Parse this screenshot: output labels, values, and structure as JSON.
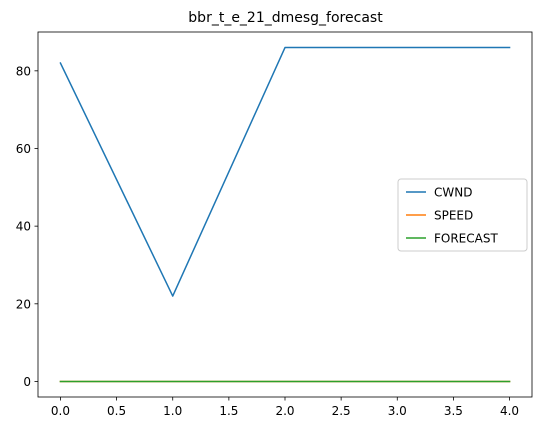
{
  "chart_data": {
    "type": "line",
    "title": "bbr_t_e_21_dmesg_forecast",
    "xlabel": "",
    "ylabel": "",
    "xlim": [
      -0.2,
      4.2
    ],
    "ylim": [
      -4.0,
      90.0
    ],
    "xticks": [
      0.0,
      0.5,
      1.0,
      1.5,
      2.0,
      2.5,
      3.0,
      3.5,
      4.0
    ],
    "xtick_labels": [
      "0.0",
      "0.5",
      "1.0",
      "1.5",
      "2.0",
      "2.5",
      "3.0",
      "3.5",
      "4.0"
    ],
    "yticks": [
      0,
      20,
      40,
      60,
      80
    ],
    "ytick_labels": [
      "0",
      "20",
      "40",
      "60",
      "80"
    ],
    "grid": false,
    "legend_position": "center-right",
    "series": [
      {
        "name": "CWND",
        "color": "#1f77b4",
        "x": [
          0,
          1,
          2,
          3,
          4
        ],
        "y": [
          82,
          22,
          86,
          86,
          86
        ]
      },
      {
        "name": "SPEED",
        "color": "#ff7f0e",
        "x": [
          0,
          1,
          2,
          3,
          4
        ],
        "y": [
          0,
          0,
          0,
          0,
          0
        ]
      },
      {
        "name": "FORECAST",
        "color": "#2ca02c",
        "x": [
          0,
          1,
          2,
          3,
          4
        ],
        "y": [
          0,
          0,
          0,
          0,
          0
        ]
      }
    ]
  }
}
